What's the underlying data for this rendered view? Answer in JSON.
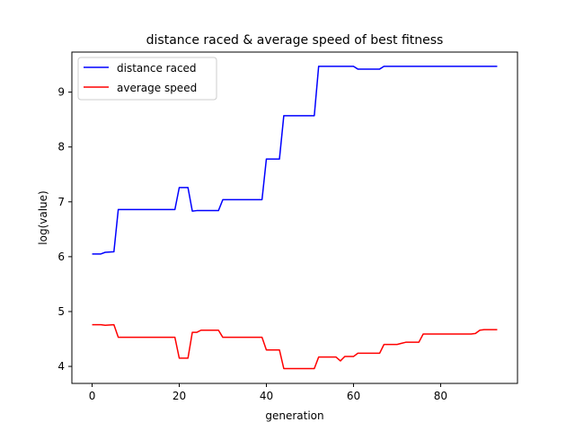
{
  "chart_data": {
    "type": "line",
    "title": "distance raced & average speed of best fitness",
    "xlabel": "generation",
    "ylabel": "log(value)",
    "xlim": [
      -4.65,
      97.65
    ],
    "ylim": [
      3.69,
      9.73
    ],
    "xticks": [
      0,
      20,
      40,
      60,
      80
    ],
    "yticks": [
      4,
      5,
      6,
      7,
      8,
      9
    ],
    "grid": false,
    "legend_position": "top-left",
    "series": [
      {
        "name": "distance raced",
        "color": "#0000ff",
        "points": [
          [
            0,
            6.05
          ],
          [
            2,
            6.05
          ],
          [
            3,
            6.08
          ],
          [
            5,
            6.09
          ],
          [
            6,
            6.86
          ],
          [
            19,
            6.86
          ],
          [
            20,
            7.26
          ],
          [
            22,
            7.26
          ],
          [
            23,
            6.83
          ],
          [
            24,
            6.84
          ],
          [
            29,
            6.84
          ],
          [
            30,
            7.04
          ],
          [
            39,
            7.04
          ],
          [
            40,
            7.78
          ],
          [
            43,
            7.78
          ],
          [
            44,
            8.57
          ],
          [
            51,
            8.57
          ],
          [
            52,
            9.47
          ],
          [
            60,
            9.47
          ],
          [
            61,
            9.42
          ],
          [
            66,
            9.42
          ],
          [
            67,
            9.47
          ],
          [
            93,
            9.47
          ]
        ]
      },
      {
        "name": "average speed",
        "color": "#ff0000",
        "points": [
          [
            0,
            4.76
          ],
          [
            2,
            4.76
          ],
          [
            3,
            4.75
          ],
          [
            5,
            4.76
          ],
          [
            6,
            4.53
          ],
          [
            19,
            4.53
          ],
          [
            20,
            4.15
          ],
          [
            22,
            4.15
          ],
          [
            23,
            4.62
          ],
          [
            24,
            4.62
          ],
          [
            25,
            4.66
          ],
          [
            29,
            4.66
          ],
          [
            30,
            4.53
          ],
          [
            39,
            4.53
          ],
          [
            40,
            4.3
          ],
          [
            43,
            4.3
          ],
          [
            44,
            3.96
          ],
          [
            51,
            3.96
          ],
          [
            52,
            4.17
          ],
          [
            56,
            4.17
          ],
          [
            57,
            4.1
          ],
          [
            58,
            4.18
          ],
          [
            60,
            4.18
          ],
          [
            61,
            4.24
          ],
          [
            66,
            4.24
          ],
          [
            67,
            4.4
          ],
          [
            70,
            4.4
          ],
          [
            71,
            4.42
          ],
          [
            72,
            4.44
          ],
          [
            75,
            4.44
          ],
          [
            76,
            4.59
          ],
          [
            87,
            4.59
          ],
          [
            88,
            4.6
          ],
          [
            89,
            4.66
          ],
          [
            90,
            4.67
          ],
          [
            93,
            4.67
          ]
        ]
      }
    ]
  }
}
